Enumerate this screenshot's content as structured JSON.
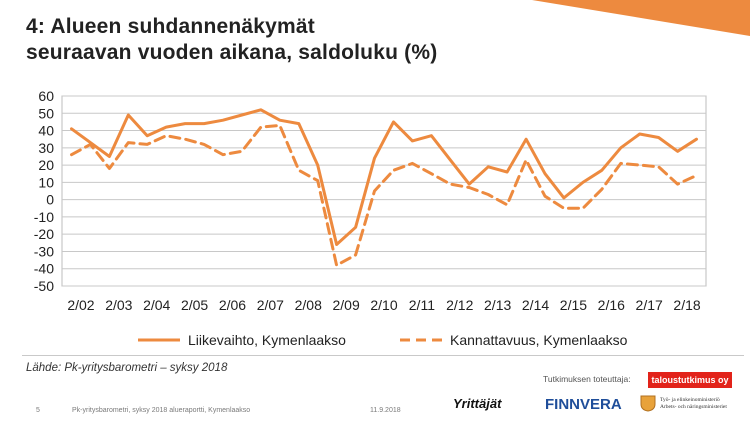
{
  "slide": {
    "title_line1": "4: Alueen suhdannenäkymät",
    "title_line2": "seuraavan vuoden aikana, saldoluku (%)",
    "source": "Lähde: Pk-yritysbarometri – syksy 2018",
    "page_number": "5",
    "report_name": "Pk-yritysbarometri, syksy 2018 alueraportti,  Kymenlaakso",
    "date": "11.9.2018",
    "conducted_label": "Tutkimuksen toteuttaja:",
    "conducted_badge": "taloustutkimus oy",
    "logo_yrittajat": "Yrittäjät",
    "logo_finnvera": "FINNVERA",
    "logo_ministry_line1": "Työ- ja elinkeinoministeriö",
    "logo_ministry_line2": "Arbets- och näringsministeriet",
    "accent_color": "#ed8a3f"
  },
  "chart_data": {
    "type": "line",
    "x_tick_labels": [
      "2/02",
      "2/03",
      "2/04",
      "2/05",
      "2/06",
      "2/07",
      "2/08",
      "2/09",
      "2/10",
      "2/11",
      "2/12",
      "2/13",
      "2/14",
      "2/15",
      "2/16",
      "2/17",
      "2/18"
    ],
    "ylim": [
      -50,
      60
    ],
    "y_ticks": [
      60,
      50,
      40,
      30,
      20,
      10,
      0,
      -10,
      -20,
      -30,
      -40,
      -50
    ],
    "grid": true,
    "legend_position": "bottom",
    "series": [
      {
        "name": "Liikevaihto, Kymenlaakso",
        "style": "solid",
        "color": "#ed8a3f",
        "values": [
          41,
          33,
          25,
          49,
          37,
          42,
          44,
          44,
          46,
          49,
          52,
          46,
          44,
          20,
          -26,
          -16,
          24,
          45,
          34,
          37,
          23,
          9,
          19,
          16,
          35,
          15,
          1,
          10,
          17,
          30,
          38,
          36,
          28,
          35
        ]
      },
      {
        "name": "Kannattavuus, Kymenlaakso",
        "style": "dashed",
        "color": "#ed8a3f",
        "values": [
          26,
          32,
          18,
          33,
          32,
          37,
          35,
          32,
          26,
          28,
          42,
          43,
          17,
          11,
          -38,
          -32,
          5,
          17,
          21,
          15,
          9,
          7,
          3,
          -3,
          23,
          2,
          -5,
          -5,
          6,
          21,
          20,
          19,
          9,
          14
        ]
      }
    ]
  }
}
